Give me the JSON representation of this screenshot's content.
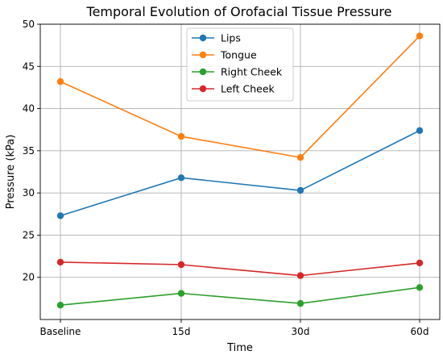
{
  "chart_data": {
    "type": "line",
    "title": "Temporal Evolution of Orofacial Tissue Pressure",
    "xlabel": "Time",
    "ylabel": "Pressure (kPa)",
    "categories": [
      "Baseline",
      "15d",
      "30d",
      "60d"
    ],
    "ylim": [
      15,
      50
    ],
    "yticks": [
      20,
      25,
      30,
      35,
      40,
      45,
      50
    ],
    "grid": true,
    "legend_position": "top-center",
    "series": [
      {
        "name": "Lips",
        "color": "#1f77b4",
        "values": [
          27.3,
          31.8,
          30.3,
          37.4
        ]
      },
      {
        "name": "Tongue",
        "color": "#ff7f0e",
        "values": [
          43.2,
          36.7,
          34.2,
          48.6
        ]
      },
      {
        "name": "Right Cheek",
        "color": "#2ca02c",
        "values": [
          16.7,
          18.1,
          16.9,
          18.8
        ]
      },
      {
        "name": "Left Cheek",
        "color": "#d62728",
        "values": [
          21.8,
          21.5,
          20.2,
          21.7
        ]
      }
    ]
  }
}
